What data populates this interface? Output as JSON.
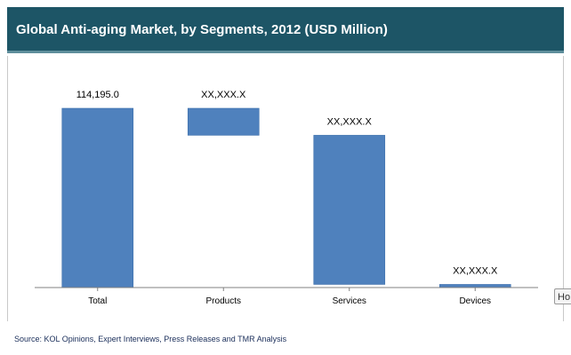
{
  "title": "Global Anti-aging Market, by Segments, 2012 (USD Million)",
  "source": "Source: KOL Opinions, Expert Interviews, Press Releases and TMR Analysis",
  "tooltip_stub": "Ho",
  "colors": {
    "header": "#1d5566",
    "bar": "#4f81bd",
    "bar_edge": "#3d6fab",
    "axis": "#808080"
  },
  "chart_data": {
    "type": "bar",
    "subtype": "waterfall",
    "title": "Global Anti-aging Market, by Segments, 2012 (USD Million)",
    "categories": [
      "Total",
      "Products",
      "Services",
      "Devices"
    ],
    "segments": [
      {
        "category": "Total",
        "start": 0,
        "end": 114195.0
      },
      {
        "category": "Products",
        "start": 97000,
        "end": 114195.0
      },
      {
        "category": "Services",
        "start": 2000,
        "end": 97000
      },
      {
        "category": "Devices",
        "start": 0,
        "end": 2000
      }
    ],
    "data_labels": [
      "114,195.0",
      "XX,XXX.X",
      "XX,XXX.X",
      "XX,XXX.X"
    ],
    "ylim": [
      0,
      114195.0
    ],
    "grid": false,
    "legend": "none"
  }
}
